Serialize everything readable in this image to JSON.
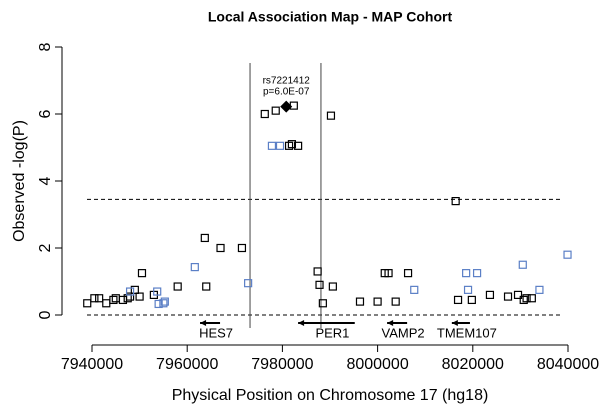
{
  "chart_data": {
    "type": "scatter",
    "title": "Local Association Map - MAP Cohort",
    "x_label": "Physical Position on Chromosome 17 (hg18)",
    "y_label": "Observed -log(P)",
    "xlim": [
      7940000,
      8040000
    ],
    "xticks": [
      7940000,
      7960000,
      7980000,
      8000000,
      8020000,
      8040000
    ],
    "ylim": [
      0,
      8
    ],
    "yticks": [
      0,
      2,
      4,
      6,
      8
    ],
    "hlines": [
      0,
      3.45
    ],
    "vlines": [
      7973200,
      7988100
    ],
    "series": [
      {
        "color": "#000000",
        "x": [
          7939000,
          7940500,
          7941500,
          7943000,
          7944500,
          7945000,
          7946500,
          7947500,
          7948000,
          7949000,
          7950000,
          7950500,
          7953000,
          7958000,
          7963700,
          7964000,
          7967000,
          7971500,
          7976300,
          7978600,
          7982400,
          7981400,
          7982000,
          7983300,
          7990200,
          7987400,
          7987800,
          7988500,
          7990600,
          7996300,
          8000000,
          8001500,
          8002300,
          8003800,
          8006400,
          8016400,
          8016900,
          8019800,
          8023600,
          8027400,
          8029500,
          8030700,
          8031300,
          8032400
        ],
        "values": [
          0.35,
          0.5,
          0.5,
          0.35,
          0.45,
          0.5,
          0.45,
          0.5,
          0.55,
          0.75,
          0.55,
          1.25,
          0.6,
          0.85,
          2.3,
          0.85,
          2.0,
          2.0,
          6.0,
          6.1,
          6.25,
          5.05,
          5.1,
          5.05,
          5.95,
          1.3,
          0.9,
          0.35,
          0.85,
          0.4,
          0.4,
          1.25,
          1.25,
          0.4,
          1.25,
          3.4,
          0.45,
          0.45,
          0.6,
          0.55,
          0.6,
          0.45,
          0.5,
          0.5
        ]
      },
      {
        "color": "#5b7fc6",
        "x": [
          7948000,
          7953700,
          7954000,
          7955000,
          7955300,
          7961600,
          7972800,
          7977800,
          7979500,
          8007700,
          8018600,
          8020900,
          8019000,
          8030500,
          8034000,
          8039900
        ],
        "values": [
          0.7,
          0.7,
          0.33,
          0.35,
          0.4,
          1.43,
          0.95,
          5.05,
          5.05,
          0.75,
          1.25,
          1.25,
          0.75,
          1.5,
          0.75,
          1.8
        ]
      }
    ],
    "highlight": {
      "x": 7980800,
      "value": 6.22,
      "label": [
        "rs7221412",
        "p=6.0E-07"
      ]
    },
    "genes": [
      {
        "name": "HES7",
        "start": 7966900,
        "end": 7962700
      },
      {
        "name": "PER1",
        "start": 7995200,
        "end": 7983300
      },
      {
        "name": "VAMP2",
        "start": 8006200,
        "end": 8002000
      },
      {
        "name": "TMEM107",
        "start": 8019400,
        "end": 8015600
      }
    ]
  }
}
